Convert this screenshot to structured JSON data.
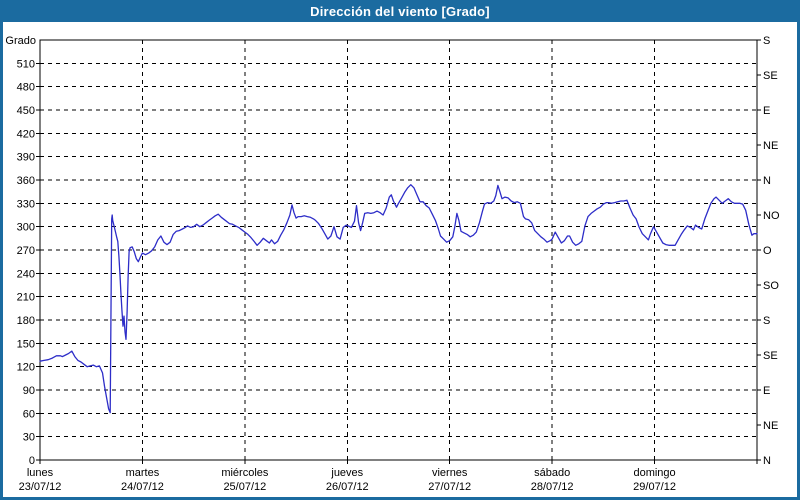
{
  "window": {
    "title": "Dirección del viento [Grado]"
  },
  "colors": {
    "titlebar_bg": "#1b6ba0",
    "titlebar_text": "#ffffff",
    "frame_border": "#1b6ba0",
    "plot_background": "#ffffff",
    "grid": "#000000",
    "axis": "#000000",
    "line": "#2d2dc8"
  },
  "chart_data": {
    "type": "line",
    "title": "Dirección del viento [Grado]",
    "ylabel": "Grado",
    "ylim": [
      0,
      540
    ],
    "grid": true,
    "legend": "none",
    "y_left_ticks": [
      0,
      30,
      60,
      90,
      120,
      150,
      180,
      210,
      240,
      270,
      300,
      330,
      360,
      390,
      420,
      450,
      480,
      510
    ],
    "y_left_unit_label": "Grado",
    "y_right_ticks": [
      {
        "deg": 0,
        "label": "N"
      },
      {
        "deg": 45,
        "label": "NE"
      },
      {
        "deg": 90,
        "label": "E"
      },
      {
        "deg": 135,
        "label": "SE"
      },
      {
        "deg": 180,
        "label": "S"
      },
      {
        "deg": 225,
        "label": "SO"
      },
      {
        "deg": 270,
        "label": "O"
      },
      {
        "deg": 315,
        "label": "NO"
      },
      {
        "deg": 360,
        "label": "N"
      },
      {
        "deg": 405,
        "label": "NE"
      },
      {
        "deg": 450,
        "label": "E"
      },
      {
        "deg": 495,
        "label": "SE"
      },
      {
        "deg": 540,
        "label": "S"
      }
    ],
    "x_days": [
      {
        "name": "lunes",
        "date": "23/07/12"
      },
      {
        "name": "martes",
        "date": "24/07/12"
      },
      {
        "name": "miércoles",
        "date": "25/07/12"
      },
      {
        "name": "jueves",
        "date": "26/07/12"
      },
      {
        "name": "viernes",
        "date": "27/07/12"
      },
      {
        "name": "sábado",
        "date": "28/07/12"
      },
      {
        "name": "domingo",
        "date": "29/07/12"
      }
    ],
    "xlim_days": [
      0,
      7
    ],
    "series": [
      {
        "name": "Dirección del viento",
        "units": "grados",
        "points": [
          [
            0,
            127
          ],
          [
            0.04,
            128
          ],
          [
            0.08,
            129
          ],
          [
            0.12,
            131
          ],
          [
            0.16,
            134
          ],
          [
            0.2,
            134
          ],
          [
            0.22,
            133
          ],
          [
            0.25,
            135
          ],
          [
            0.28,
            137
          ],
          [
            0.31,
            140
          ],
          [
            0.34,
            133
          ],
          [
            0.37,
            128
          ],
          [
            0.4,
            126
          ],
          [
            0.43,
            123
          ],
          [
            0.46,
            120
          ],
          [
            0.49,
            121
          ],
          [
            0.52,
            122
          ],
          [
            0.55,
            120
          ],
          [
            0.58,
            121
          ],
          [
            0.61,
            112
          ],
          [
            0.63,
            95
          ],
          [
            0.65,
            80
          ],
          [
            0.67,
            66
          ],
          [
            0.685,
            61
          ],
          [
            0.7,
            310
          ],
          [
            0.705,
            315
          ],
          [
            0.71,
            308
          ],
          [
            0.73,
            297
          ],
          [
            0.75,
            286
          ],
          [
            0.76,
            281
          ],
          [
            0.77,
            262
          ],
          [
            0.78,
            240
          ],
          [
            0.79,
            215
          ],
          [
            0.8,
            193
          ],
          [
            0.81,
            172
          ],
          [
            0.82,
            185
          ],
          [
            0.83,
            165
          ],
          [
            0.84,
            155
          ],
          [
            0.85,
            190
          ],
          [
            0.86,
            235
          ],
          [
            0.87,
            268
          ],
          [
            0.88,
            273
          ],
          [
            0.9,
            274
          ],
          [
            0.92,
            268
          ],
          [
            0.94,
            259
          ],
          [
            0.96,
            255
          ],
          [
            0.98,
            261
          ],
          [
            1,
            266
          ],
          [
            1.03,
            264
          ],
          [
            1.06,
            266
          ],
          [
            1.09,
            269
          ],
          [
            1.12,
            274
          ],
          [
            1.15,
            283
          ],
          [
            1.18,
            288
          ],
          [
            1.21,
            280
          ],
          [
            1.24,
            277
          ],
          [
            1.27,
            280
          ],
          [
            1.3,
            290
          ],
          [
            1.33,
            294
          ],
          [
            1.36,
            295
          ],
          [
            1.39,
            297
          ],
          [
            1.42,
            299
          ],
          [
            1.44,
            301
          ],
          [
            1.47,
            299
          ],
          [
            1.5,
            300
          ],
          [
            1.53,
            303
          ],
          [
            1.56,
            300
          ],
          [
            1.59,
            302
          ],
          [
            1.62,
            305
          ],
          [
            1.65,
            308
          ],
          [
            1.68,
            311
          ],
          [
            1.71,
            314
          ],
          [
            1.74,
            316
          ],
          [
            1.77,
            312
          ],
          [
            1.8,
            309
          ],
          [
            1.83,
            306
          ],
          [
            1.85,
            304
          ],
          [
            1.88,
            303
          ],
          [
            1.91,
            301
          ],
          [
            1.94,
            299
          ],
          [
            1.97,
            296
          ],
          [
            2,
            293
          ],
          [
            2.03,
            290
          ],
          [
            2.06,
            286
          ],
          [
            2.09,
            281
          ],
          [
            2.12,
            276
          ],
          [
            2.15,
            280
          ],
          [
            2.18,
            285
          ],
          [
            2.21,
            282
          ],
          [
            2.24,
            279
          ],
          [
            2.26,
            283
          ],
          [
            2.29,
            278
          ],
          [
            2.32,
            281
          ],
          [
            2.35,
            289
          ],
          [
            2.38,
            296
          ],
          [
            2.41,
            305
          ],
          [
            2.44,
            315
          ],
          [
            2.46,
            328
          ],
          [
            2.48,
            318
          ],
          [
            2.5,
            311
          ],
          [
            2.52,
            313
          ],
          [
            2.55,
            313
          ],
          [
            2.58,
            314
          ],
          [
            2.61,
            313
          ],
          [
            2.64,
            312
          ],
          [
            2.67,
            310
          ],
          [
            2.69,
            308
          ],
          [
            2.72,
            304
          ],
          [
            2.75,
            298
          ],
          [
            2.78,
            291
          ],
          [
            2.81,
            284
          ],
          [
            2.84,
            288
          ],
          [
            2.87,
            300
          ],
          [
            2.9,
            287
          ],
          [
            2.93,
            284
          ],
          [
            2.96,
            299
          ],
          [
            2.99,
            302
          ],
          [
            3.04,
            299
          ],
          [
            3.07,
            307
          ],
          [
            3.09,
            327
          ],
          [
            3.11,
            305
          ],
          [
            3.13,
            295
          ],
          [
            3.15,
            305
          ],
          [
            3.17,
            317
          ],
          [
            3.2,
            318
          ],
          [
            3.23,
            317
          ],
          [
            3.26,
            318
          ],
          [
            3.29,
            320
          ],
          [
            3.32,
            318
          ],
          [
            3.35,
            315
          ],
          [
            3.38,
            324
          ],
          [
            3.41,
            338
          ],
          [
            3.43,
            341
          ],
          [
            3.45,
            333
          ],
          [
            3.48,
            325
          ],
          [
            3.5,
            330
          ],
          [
            3.53,
            337
          ],
          [
            3.56,
            344
          ],
          [
            3.59,
            350
          ],
          [
            3.62,
            354
          ],
          [
            3.65,
            350
          ],
          [
            3.68,
            341
          ],
          [
            3.71,
            332
          ],
          [
            3.74,
            332
          ],
          [
            3.77,
            327
          ],
          [
            3.8,
            324
          ],
          [
            3.83,
            316
          ],
          [
            3.86,
            308
          ],
          [
            3.89,
            297
          ],
          [
            3.91,
            288
          ],
          [
            3.94,
            284
          ],
          [
            3.97,
            280
          ],
          [
            4,
            282
          ],
          [
            4.03,
            287
          ],
          [
            4.05,
            300
          ],
          [
            4.07,
            317
          ],
          [
            4.09,
            308
          ],
          [
            4.11,
            294
          ],
          [
            4.14,
            292
          ],
          [
            4.17,
            290
          ],
          [
            4.2,
            287
          ],
          [
            4.23,
            289
          ],
          [
            4.26,
            293
          ],
          [
            4.29,
            305
          ],
          [
            4.32,
            320
          ],
          [
            4.34,
            329
          ],
          [
            4.37,
            331
          ],
          [
            4.4,
            330
          ],
          [
            4.43,
            333
          ],
          [
            4.45,
            340
          ],
          [
            4.47,
            353
          ],
          [
            4.49,
            345
          ],
          [
            4.51,
            336
          ],
          [
            4.54,
            338
          ],
          [
            4.57,
            337
          ],
          [
            4.6,
            333
          ],
          [
            4.63,
            331
          ],
          [
            4.66,
            332
          ],
          [
            4.69,
            330
          ],
          [
            4.72,
            313
          ],
          [
            4.74,
            310
          ],
          [
            4.77,
            309
          ],
          [
            4.8,
            305
          ],
          [
            4.83,
            295
          ],
          [
            4.86,
            291
          ],
          [
            4.89,
            287
          ],
          [
            4.92,
            284
          ],
          [
            4.95,
            280
          ],
          [
            4.98,
            282
          ],
          [
            5,
            284
          ],
          [
            5.03,
            293
          ],
          [
            5.06,
            286
          ],
          [
            5.09,
            279
          ],
          [
            5.12,
            282
          ],
          [
            5.15,
            288
          ],
          [
            5.17,
            288
          ],
          [
            5.2,
            280
          ],
          [
            5.23,
            276
          ],
          [
            5.26,
            278
          ],
          [
            5.29,
            281
          ],
          [
            5.32,
            301
          ],
          [
            5.35,
            313
          ],
          [
            5.38,
            317
          ],
          [
            5.41,
            320
          ],
          [
            5.44,
            323
          ],
          [
            5.47,
            325
          ],
          [
            5.5,
            329
          ],
          [
            5.53,
            331
          ],
          [
            5.55,
            331
          ],
          [
            5.58,
            330
          ],
          [
            5.61,
            331
          ],
          [
            5.64,
            332
          ],
          [
            5.67,
            333
          ],
          [
            5.7,
            333
          ],
          [
            5.73,
            334
          ],
          [
            5.76,
            324
          ],
          [
            5.79,
            315
          ],
          [
            5.82,
            310
          ],
          [
            5.85,
            299
          ],
          [
            5.88,
            291
          ],
          [
            5.91,
            287
          ],
          [
            5.94,
            283
          ],
          [
            5.96,
            291
          ],
          [
            5.99,
            300
          ],
          [
            6.02,
            293
          ],
          [
            6.05,
            286
          ],
          [
            6.08,
            279
          ],
          [
            6.11,
            277
          ],
          [
            6.14,
            276
          ],
          [
            6.17,
            276
          ],
          [
            6.2,
            276
          ],
          [
            6.23,
            283
          ],
          [
            6.26,
            290
          ],
          [
            6.29,
            296
          ],
          [
            6.32,
            301
          ],
          [
            6.35,
            299
          ],
          [
            6.38,
            296
          ],
          [
            6.4,
            302
          ],
          [
            6.43,
            299
          ],
          [
            6.46,
            297
          ],
          [
            6.49,
            310
          ],
          [
            6.52,
            320
          ],
          [
            6.55,
            330
          ],
          [
            6.58,
            336
          ],
          [
            6.6,
            338
          ],
          [
            6.63,
            334
          ],
          [
            6.66,
            330
          ],
          [
            6.69,
            333
          ],
          [
            6.72,
            336
          ],
          [
            6.75,
            332
          ],
          [
            6.78,
            330
          ],
          [
            6.8,
            330
          ],
          [
            6.83,
            330
          ],
          [
            6.86,
            329
          ],
          [
            6.89,
            321
          ],
          [
            6.92,
            303
          ],
          [
            6.95,
            289
          ],
          [
            6.97,
            291
          ],
          [
            7,
            291
          ]
        ]
      }
    ]
  }
}
